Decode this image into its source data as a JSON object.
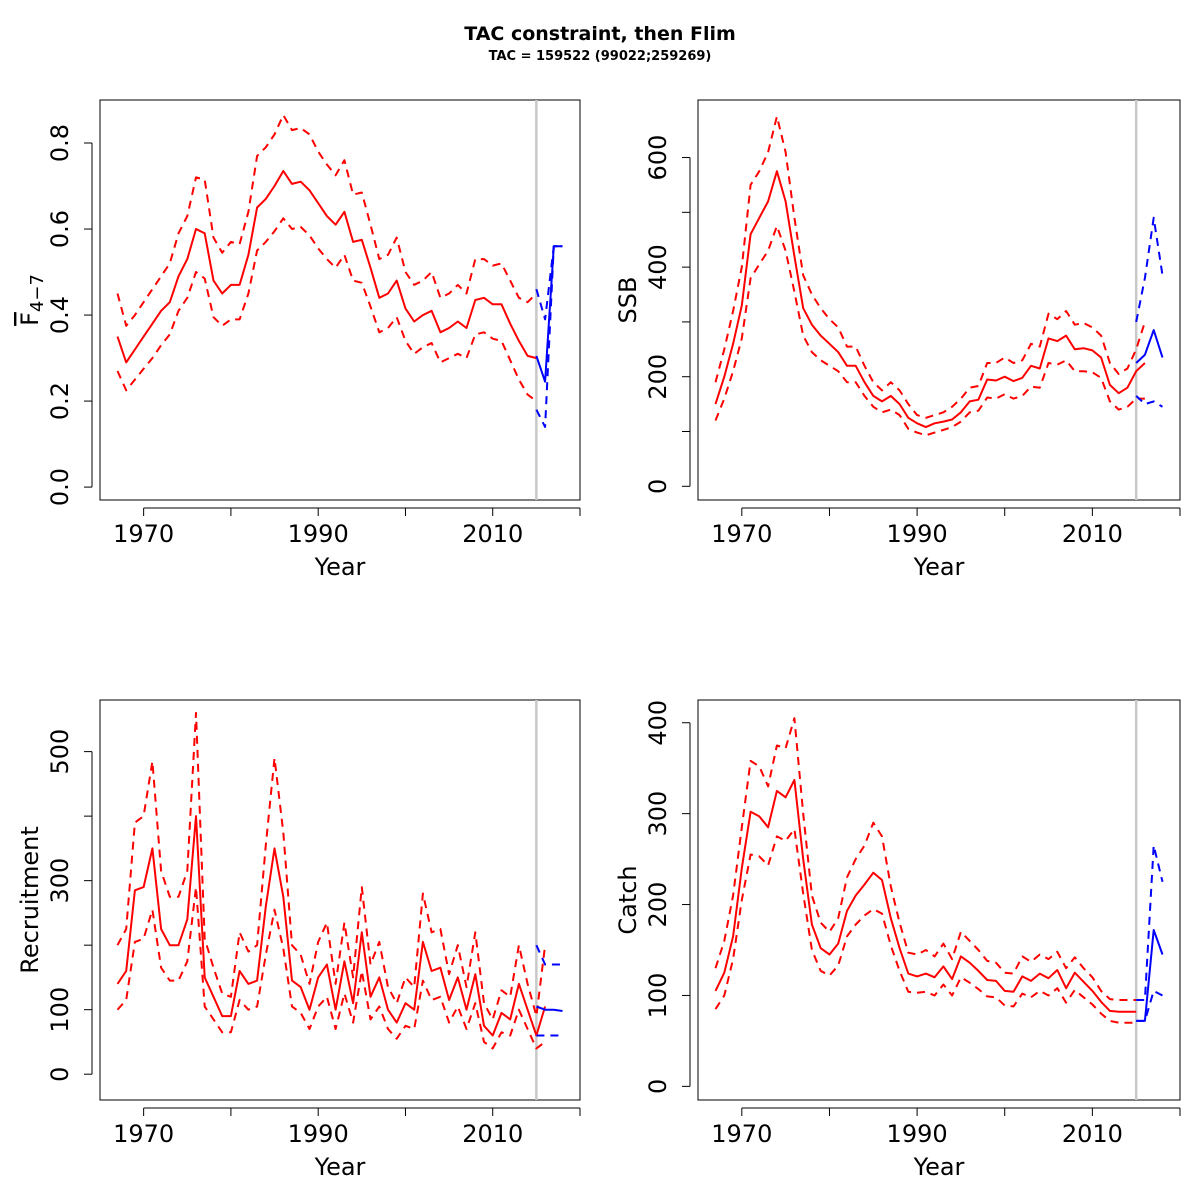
{
  "title": "TAC constraint, then Flim",
  "subtitle": "TAC = 159522 (99022;259269)",
  "colors": {
    "estimate": "#ff0000",
    "forecast": "#0000ff",
    "divider": "#c8c8c8"
  },
  "chart_data": [
    {
      "type": "line",
      "ylabel_main": "F",
      "ylabel_sub": "4−7",
      "xlabel": "Year",
      "xlim": [
        1965,
        2020
      ],
      "ylim": [
        -0.03,
        0.9
      ],
      "yticks": [
        0.0,
        0.2,
        0.4,
        0.6,
        0.8
      ],
      "ytick_labels": [
        "0.0",
        "0.2",
        "0.4",
        "0.6",
        "0.8"
      ],
      "xticks": [
        1970,
        1980,
        1990,
        2000,
        2010,
        2020
      ],
      "xtick_labels": [
        "1970",
        "",
        "1990",
        "",
        "2010",
        ""
      ],
      "divider_x": 2015,
      "series": [
        {
          "role": "estimate",
          "style": "solid",
          "start_year": 1967,
          "values": [
            0.35,
            0.29,
            0.32,
            0.35,
            0.38,
            0.41,
            0.43,
            0.49,
            0.53,
            0.6,
            0.59,
            0.48,
            0.45,
            0.47,
            0.47,
            0.54,
            0.65,
            0.67,
            0.7,
            0.735,
            0.705,
            0.71,
            0.69,
            0.66,
            0.63,
            0.61,
            0.64,
            0.57,
            0.575,
            0.51,
            0.44,
            0.45,
            0.48,
            0.415,
            0.385,
            0.4,
            0.41,
            0.36,
            0.37,
            0.385,
            0.37,
            0.435,
            0.44,
            0.425,
            0.425,
            0.38,
            0.34,
            0.305,
            0.3
          ]
        },
        {
          "role": "estimate",
          "style": "dashed",
          "start_year": 1967,
          "values": [
            0.45,
            0.375,
            0.4,
            0.43,
            0.46,
            0.49,
            0.52,
            0.59,
            0.63,
            0.72,
            0.715,
            0.58,
            0.545,
            0.57,
            0.565,
            0.64,
            0.77,
            0.79,
            0.82,
            0.865,
            0.83,
            0.835,
            0.82,
            0.78,
            0.75,
            0.725,
            0.76,
            0.68,
            0.685,
            0.61,
            0.53,
            0.54,
            0.58,
            0.5,
            0.47,
            0.48,
            0.5,
            0.44,
            0.45,
            0.47,
            0.45,
            0.53,
            0.53,
            0.515,
            0.52,
            0.48,
            0.44,
            0.43,
            0.45
          ]
        },
        {
          "role": "estimate",
          "style": "dashed",
          "start_year": 1967,
          "values": [
            0.27,
            0.225,
            0.25,
            0.275,
            0.3,
            0.33,
            0.355,
            0.41,
            0.44,
            0.5,
            0.485,
            0.395,
            0.375,
            0.39,
            0.39,
            0.45,
            0.55,
            0.57,
            0.595,
            0.625,
            0.6,
            0.605,
            0.585,
            0.555,
            0.53,
            0.51,
            0.54,
            0.48,
            0.475,
            0.42,
            0.36,
            0.37,
            0.395,
            0.34,
            0.31,
            0.325,
            0.335,
            0.29,
            0.3,
            0.31,
            0.3,
            0.355,
            0.36,
            0.345,
            0.34,
            0.295,
            0.25,
            0.215,
            0.2
          ]
        },
        {
          "role": "forecast",
          "style": "solid",
          "start_year": 2015,
          "values": [
            0.305,
            0.245,
            0.56,
            0.56
          ]
        },
        {
          "role": "forecast",
          "style": "dashed",
          "start_year": 2015,
          "values": [
            0.46,
            0.39,
            0.56,
            0.56
          ]
        },
        {
          "role": "forecast",
          "style": "dashed",
          "start_year": 2015,
          "values": [
            0.18,
            0.14,
            0.56,
            0.56
          ]
        }
      ]
    },
    {
      "type": "line",
      "ylabel_main": "SSB",
      "xlabel": "Year",
      "xlim": [
        1965,
        2020
      ],
      "ylim": [
        -25,
        705
      ],
      "yticks": [
        0,
        100,
        200,
        300,
        400,
        500,
        600
      ],
      "ytick_labels": [
        "0",
        "",
        "200",
        "",
        "400",
        "",
        "600"
      ],
      "xticks": [
        1970,
        1980,
        1990,
        2000,
        2010,
        2020
      ],
      "xtick_labels": [
        "1970",
        "",
        "1990",
        "",
        "2010",
        ""
      ],
      "divider_x": 2015,
      "series": [
        {
          "role": "estimate",
          "style": "solid",
          "start_year": 1967,
          "values": [
            150,
            200,
            260,
            330,
            460,
            490,
            520,
            575,
            520,
            420,
            325,
            295,
            275,
            260,
            245,
            220,
            220,
            190,
            165,
            155,
            165,
            150,
            125,
            115,
            108,
            115,
            118,
            122,
            135,
            155,
            158,
            195,
            193,
            200,
            192,
            198,
            220,
            215,
            270,
            265,
            275,
            250,
            252,
            248,
            235,
            185,
            170,
            180,
            210,
            225
          ]
        },
        {
          "role": "estimate",
          "style": "dashed",
          "start_year": 1967,
          "values": [
            190,
            250,
            320,
            400,
            550,
            575,
            610,
            675,
            610,
            490,
            385,
            350,
            325,
            305,
            290,
            255,
            255,
            220,
            190,
            175,
            190,
            175,
            150,
            130,
            125,
            130,
            135,
            145,
            160,
            180,
            183,
            225,
            225,
            235,
            225,
            230,
            260,
            255,
            315,
            305,
            320,
            295,
            298,
            290,
            275,
            225,
            205,
            215,
            250,
            300
          ]
        },
        {
          "role": "estimate",
          "style": "dashed",
          "start_year": 1967,
          "values": [
            120,
            160,
            210,
            270,
            380,
            405,
            430,
            475,
            430,
            355,
            275,
            245,
            230,
            220,
            210,
            190,
            190,
            165,
            145,
            135,
            140,
            130,
            105,
            98,
            93,
            98,
            103,
            108,
            118,
            135,
            138,
            162,
            160,
            168,
            160,
            165,
            182,
            180,
            225,
            222,
            230,
            210,
            210,
            208,
            198,
            155,
            140,
            145,
            160,
            160
          ]
        },
        {
          "role": "forecast",
          "style": "solid",
          "start_year": 2015,
          "values": [
            225,
            240,
            285,
            235
          ]
        },
        {
          "role": "forecast",
          "style": "dashed",
          "start_year": 2015,
          "values": [
            300,
            380,
            490,
            385
          ]
        },
        {
          "role": "forecast",
          "style": "dashed",
          "start_year": 2015,
          "values": [
            165,
            150,
            155,
            145
          ]
        }
      ]
    },
    {
      "type": "line",
      "ylabel_main": "Recruitment",
      "xlabel": "Year",
      "xlim": [
        1965,
        2020
      ],
      "ylim": [
        -40,
        580
      ],
      "yticks": [
        0,
        100,
        200,
        300,
        400,
        500
      ],
      "ytick_labels": [
        "0",
        "100",
        "",
        "300",
        "",
        "500"
      ],
      "xticks": [
        1970,
        1980,
        1990,
        2000,
        2010,
        2020
      ],
      "xtick_labels": [
        "1970",
        "",
        "1990",
        "",
        "2010",
        ""
      ],
      "divider_x": 2015,
      "series": [
        {
          "role": "estimate",
          "style": "solid",
          "start_year": 1967,
          "values": [
            140,
            160,
            285,
            290,
            350,
            225,
            200,
            200,
            240,
            400,
            150,
            120,
            90,
            90,
            160,
            140,
            145,
            260,
            350,
            275,
            145,
            135,
            100,
            150,
            170,
            100,
            175,
            110,
            220,
            120,
            150,
            100,
            80,
            110,
            100,
            205,
            160,
            165,
            115,
            150,
            100,
            155,
            75,
            60,
            95,
            85,
            140,
            100,
            60,
            105
          ]
        },
        {
          "role": "estimate",
          "style": "dashed",
          "start_year": 1967,
          "values": [
            200,
            225,
            390,
            400,
            485,
            315,
            275,
            275,
            315,
            560,
            210,
            165,
            125,
            120,
            220,
            190,
            200,
            355,
            490,
            375,
            200,
            185,
            140,
            205,
            235,
            140,
            235,
            150,
            290,
            170,
            205,
            135,
            110,
            150,
            135,
            280,
            220,
            225,
            155,
            200,
            135,
            220,
            110,
            85,
            130,
            120,
            200,
            140,
            90,
            200
          ]
        },
        {
          "role": "estimate",
          "style": "dashed",
          "start_year": 1967,
          "values": [
            100,
            115,
            205,
            210,
            255,
            165,
            145,
            145,
            175,
            290,
            105,
            85,
            65,
            65,
            115,
            100,
            105,
            185,
            255,
            195,
            105,
            95,
            70,
            105,
            120,
            70,
            125,
            80,
            160,
            85,
            105,
            70,
            55,
            75,
            70,
            145,
            115,
            120,
            80,
            105,
            70,
            110,
            50,
            40,
            65,
            60,
            100,
            70,
            40,
            50
          ]
        },
        {
          "role": "forecast",
          "style": "solid",
          "start_year": 2015,
          "values": [
            105,
            100,
            100,
            98
          ]
        },
        {
          "role": "forecast",
          "style": "dashed",
          "start_year": 2015,
          "values": [
            200,
            170,
            170,
            170
          ]
        },
        {
          "role": "forecast",
          "style": "dashed",
          "start_year": 2015,
          "values": [
            60,
            60,
            60,
            60
          ]
        }
      ]
    },
    {
      "type": "line",
      "ylabel_main": "Catch",
      "xlabel": "Year",
      "xlim": [
        1965,
        2020
      ],
      "ylim": [
        -15,
        425
      ],
      "yticks": [
        0,
        100,
        200,
        300,
        400
      ],
      "ytick_labels": [
        "0",
        "100",
        "200",
        "300",
        "400"
      ],
      "xticks": [
        1970,
        1980,
        1990,
        2000,
        2010,
        2020
      ],
      "xtick_labels": [
        "1970",
        "",
        "1990",
        "",
        "2010",
        ""
      ],
      "divider_x": 2015,
      "series": [
        {
          "role": "estimate",
          "style": "solid",
          "start_year": 1967,
          "values": [
            105,
            125,
            165,
            240,
            302,
            297,
            285,
            325,
            318,
            337,
            250,
            178,
            152,
            145,
            157,
            193,
            210,
            222,
            235,
            227,
            185,
            152,
            124,
            121,
            124,
            120,
            132,
            118,
            143,
            136,
            127,
            117,
            116,
            105,
            104,
            121,
            116,
            124,
            119,
            128,
            108,
            125,
            115,
            105,
            93,
            83,
            82,
            82,
            82
          ]
        },
        {
          "role": "estimate",
          "style": "dashed",
          "start_year": 1967,
          "values": [
            130,
            160,
            210,
            285,
            358,
            352,
            330,
            375,
            372,
            405,
            300,
            210,
            180,
            170,
            185,
            230,
            250,
            265,
            290,
            275,
            220,
            180,
            147,
            145,
            150,
            143,
            157,
            140,
            170,
            160,
            150,
            138,
            136,
            125,
            124,
            143,
            137,
            145,
            140,
            148,
            130,
            142,
            130,
            120,
            105,
            96,
            95,
            95,
            95
          ]
        },
        {
          "role": "estimate",
          "style": "dashed",
          "start_year": 1967,
          "values": [
            85,
            100,
            140,
            205,
            255,
            253,
            243,
            275,
            270,
            283,
            212,
            150,
            127,
            122,
            133,
            165,
            178,
            188,
            195,
            190,
            155,
            127,
            104,
            103,
            104,
            100,
            112,
            100,
            120,
            114,
            107,
            99,
            98,
            89,
            88,
            102,
            98,
            105,
            100,
            108,
            92,
            106,
            98,
            90,
            80,
            72,
            70,
            70,
            70
          ]
        },
        {
          "role": "forecast",
          "style": "solid",
          "start_year": 2015,
          "values": [
            72,
            72,
            172,
            145
          ]
        },
        {
          "role": "forecast",
          "style": "dashed",
          "start_year": 2015,
          "values": [
            95,
            95,
            265,
            225
          ]
        },
        {
          "role": "forecast",
          "style": "dashed",
          "start_year": 2015,
          "values": [
            72,
            72,
            105,
            100
          ]
        }
      ]
    }
  ]
}
